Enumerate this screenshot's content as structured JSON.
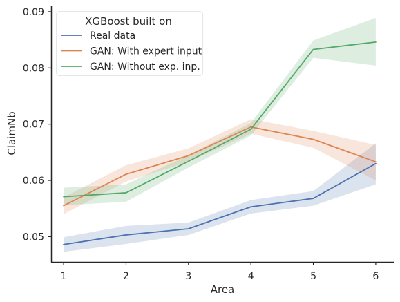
{
  "chart_data": {
    "type": "line",
    "xlabel": "Area",
    "ylabel": "ClaimNb",
    "x": [
      1,
      2,
      3,
      4,
      5,
      6
    ],
    "xlim": [
      0.8,
      6.3
    ],
    "ylim": [
      0.0455,
      0.0911
    ],
    "yticks": [
      0.05,
      0.06,
      0.07,
      0.08,
      0.09
    ],
    "ytick_labels": [
      "0.05",
      "0.06",
      "0.07",
      "0.08",
      "0.09"
    ],
    "xtick_labels": [
      "1",
      "2",
      "3",
      "4",
      "5",
      "6"
    ],
    "grid": false,
    "legend": {
      "title": "XGBoost built on",
      "placement": "top-left"
    },
    "series": [
      {
        "name": "Real data",
        "color": "#4c72b0",
        "values": [
          0.0486,
          0.0503,
          0.0514,
          0.0553,
          0.0568,
          0.063
        ],
        "ci_low": [
          0.0473,
          0.0487,
          0.0503,
          0.0541,
          0.0555,
          0.0593
        ],
        "ci_high": [
          0.0499,
          0.0519,
          0.0525,
          0.0565,
          0.0581,
          0.0666
        ]
      },
      {
        "name": "GAN: With expert input",
        "color": "#dd8452",
        "values": [
          0.0555,
          0.0611,
          0.0644,
          0.0695,
          0.0673,
          0.0633
        ],
        "ci_low": [
          0.054,
          0.0598,
          0.0633,
          0.0683,
          0.0658,
          0.06
        ],
        "ci_high": [
          0.057,
          0.0627,
          0.0657,
          0.0709,
          0.0688,
          0.0663
        ]
      },
      {
        "name": "GAN: Without exp. inp.",
        "color": "#55a868",
        "values": [
          0.0571,
          0.0578,
          0.0634,
          0.0691,
          0.0833,
          0.0846
        ],
        "ci_low": [
          0.0556,
          0.0562,
          0.0623,
          0.068,
          0.0818,
          0.0804
        ],
        "ci_high": [
          0.0587,
          0.0593,
          0.0645,
          0.0702,
          0.0849,
          0.0889
        ]
      }
    ]
  }
}
